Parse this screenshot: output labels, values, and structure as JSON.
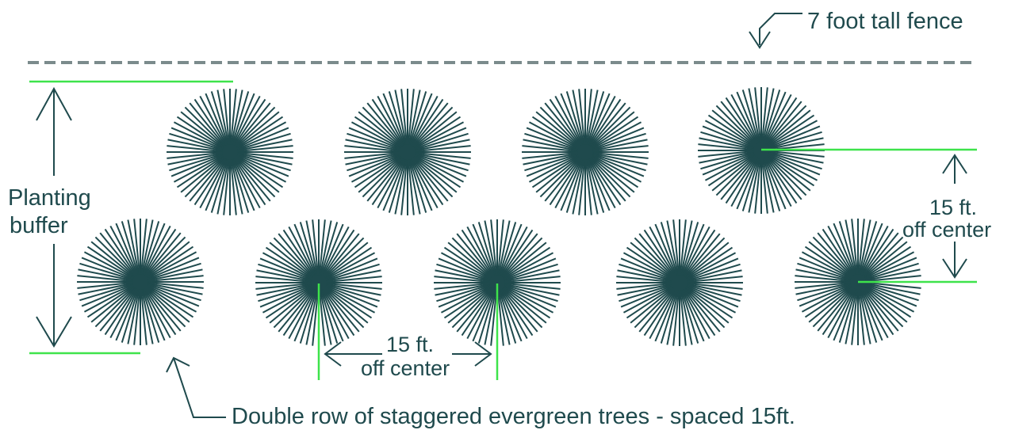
{
  "colors": {
    "tree": "#1f4a4d",
    "text": "#1f4a4d",
    "accent": "#3ee34b",
    "fence": "#7b8b8c",
    "background": "#ffffff"
  },
  "labels": {
    "fence": "7 foot tall fence",
    "buffer_line1": "Planting",
    "buffer_line2": "buffer",
    "row_spacing_line1": "15 ft.",
    "row_spacing_line2": "off center",
    "tree_spacing_line1": "15 ft.",
    "tree_spacing_line2": "off center",
    "caption": "Double row of staggered evergreen trees - spaced 15ft."
  },
  "trees": {
    "back_row_count": 4,
    "front_row_count": 5
  }
}
